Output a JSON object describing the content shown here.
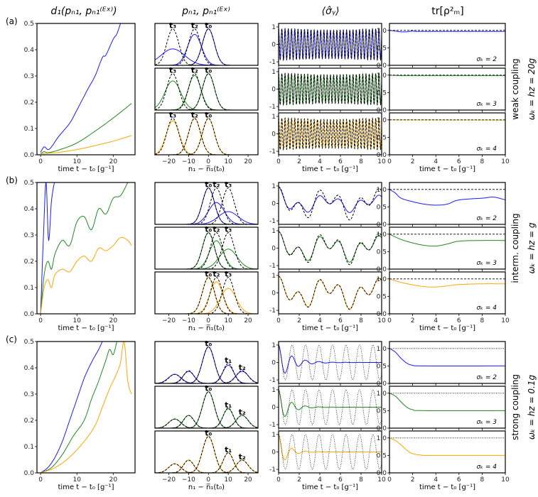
{
  "colors": {
    "blue": "#1a1aff",
    "green": "#1f8a1f",
    "orange": "#ffa500",
    "exact": "#000000"
  },
  "column_titles": [
    "d₁(pₙ₁, pₙ₁⁽ᴱˣ⁾)",
    "pₙ₁, pₙ₁⁽ᴱˣ⁾",
    "⟨σ̂ᵧ⟩",
    "tr[ρ²ₘ]"
  ],
  "x_labels": [
    "time t − t₀ [g⁻¹]",
    "n₁ − n̅₁(t₀)",
    "time t − t₀ [g⁻¹]",
    "time  t − t₀ [g⁻¹]"
  ],
  "panel_labels": [
    "(a)",
    "(b)",
    "(c)"
  ],
  "row_labels": [
    {
      "coupling": "weak coupling",
      "params": "ωₖ = hz = 20g"
    },
    {
      "coupling": "interm. coupling",
      "params": "ωₖ = hz = g"
    },
    {
      "coupling": "strong coupling",
      "params": "ωₖ = hz = 0.1g"
    }
  ],
  "sigma_labels": [
    "σₖ = 2",
    "σₖ = 3",
    "σₖ = 4"
  ],
  "chart_data": [
    {
      "type": "line",
      "name": "d1 distance",
      "xlim": [
        -1,
        26
      ],
      "ylim": [
        0,
        0.5
      ],
      "xticks": [
        0,
        10,
        20
      ],
      "yticks": [
        0.0,
        0.1,
        0.2,
        0.3,
        0.4,
        0.5
      ],
      "rows": [
        {
          "blue": [
            [
              0,
              0.01
            ],
            [
              1,
              0.03
            ],
            [
              2,
              0.02
            ],
            [
              3,
              0.03
            ],
            [
              5,
              0.07
            ],
            [
              8,
              0.12
            ],
            [
              10,
              0.17
            ],
            [
              13,
              0.25
            ],
            [
              15,
              0.3
            ],
            [
              17,
              0.37
            ],
            [
              18,
              0.38
            ],
            [
              20,
              0.44
            ],
            [
              21,
              0.46
            ],
            [
              22,
              0.5
            ]
          ],
          "green": [
            [
              0,
              0.005
            ],
            [
              1,
              0.012
            ],
            [
              2,
              0.008
            ],
            [
              5,
              0.018
            ],
            [
              10,
              0.045
            ],
            [
              15,
              0.09
            ],
            [
              20,
              0.14
            ],
            [
              25,
              0.195
            ]
          ],
          "orange": [
            [
              0,
              0.004
            ],
            [
              2,
              0.006
            ],
            [
              5,
              0.009
            ],
            [
              10,
              0.02
            ],
            [
              15,
              0.035
            ],
            [
              20,
              0.052
            ],
            [
              25,
              0.073
            ]
          ]
        },
        {
          "blue": [
            [
              0,
              0
            ],
            [
              0.8,
              0.3
            ],
            [
              1.5,
              0.5
            ],
            [
              2.2,
              0.28
            ],
            [
              3,
              0.43
            ],
            [
              3.8,
              0.5
            ]
          ],
          "green": [
            [
              0,
              0
            ],
            [
              1,
              0.15
            ],
            [
              2,
              0.2
            ],
            [
              3,
              0.17
            ],
            [
              4,
              0.23
            ],
            [
              6,
              0.28
            ],
            [
              8,
              0.26
            ],
            [
              10,
              0.35
            ],
            [
              12,
              0.37
            ],
            [
              14,
              0.32
            ],
            [
              16,
              0.4
            ],
            [
              18,
              0.38
            ],
            [
              20,
              0.44
            ],
            [
              22,
              0.45
            ],
            [
              24,
              0.5
            ]
          ],
          "orange": [
            [
              0,
              0
            ],
            [
              1,
              0.1
            ],
            [
              2,
              0.13
            ],
            [
              3,
              0.1
            ],
            [
              4,
              0.15
            ],
            [
              6,
              0.17
            ],
            [
              8,
              0.16
            ],
            [
              10,
              0.2
            ],
            [
              12,
              0.22
            ],
            [
              14,
              0.2
            ],
            [
              16,
              0.25
            ],
            [
              18,
              0.24
            ],
            [
              20,
              0.26
            ],
            [
              22,
              0.29
            ],
            [
              24,
              0.28
            ],
            [
              25,
              0.26
            ]
          ]
        },
        {
          "blue": [
            [
              0,
              0
            ],
            [
              2,
              0.02
            ],
            [
              4,
              0.06
            ],
            [
              6,
              0.12
            ],
            [
              8,
              0.2
            ],
            [
              10,
              0.28
            ],
            [
              12,
              0.36
            ],
            [
              14,
              0.42
            ],
            [
              16,
              0.47
            ],
            [
              17,
              0.5
            ]
          ],
          "green": [
            [
              0,
              0
            ],
            [
              3,
              0.02
            ],
            [
              6,
              0.07
            ],
            [
              9,
              0.14
            ],
            [
              12,
              0.2
            ],
            [
              14,
              0.28
            ],
            [
              16,
              0.35
            ],
            [
              18,
              0.43
            ],
            [
              19,
              0.47
            ],
            [
              20,
              0.45
            ],
            [
              21,
              0.5
            ]
          ],
          "orange": [
            [
              0,
              0
            ],
            [
              4,
              0.02
            ],
            [
              8,
              0.06
            ],
            [
              12,
              0.12
            ],
            [
              15,
              0.18
            ],
            [
              17,
              0.25
            ],
            [
              19,
              0.32
            ],
            [
              21,
              0.38
            ],
            [
              22,
              0.42
            ],
            [
              23,
              0.5
            ],
            [
              24,
              0.35
            ],
            [
              25,
              0.3
            ]
          ]
        }
      ]
    },
    {
      "type": "line",
      "name": "photon number distributions",
      "xlim": [
        -27,
        25
      ],
      "ylim": [
        0,
        1.15
      ],
      "xticks": [
        -20,
        -10,
        0,
        10,
        20
      ],
      "rows": [
        {
          "peaks": [
            {
              "label": "t₃",
              "n": -18
            },
            {
              "label": "t₂",
              "n": -7
            },
            {
              "label": "t₀",
              "n": 0
            }
          ],
          "exact": [
            [
              -18,
              3,
              1
            ],
            [
              -7,
              3,
              1
            ],
            [
              0,
              3,
              1
            ]
          ],
          "blue": [
            [
              -18,
              6,
              0.45
            ],
            [
              -7,
              3.5,
              0.85
            ],
            [
              0,
              3,
              1
            ]
          ],
          "green": [
            [
              -18,
              4,
              0.8
            ],
            [
              -7,
              3.2,
              0.95
            ],
            [
              0,
              3,
              1
            ]
          ],
          "orange": [
            [
              -18,
              3.3,
              0.93
            ],
            [
              -7,
              3,
              1
            ],
            [
              0,
              3,
              1
            ]
          ]
        },
        {
          "peaks": [
            {
              "label": "t₀",
              "n": 0
            },
            {
              "label": "t₂",
              "n": 4
            },
            {
              "label": "t₃",
              "n": 10
            }
          ],
          "exact": [
            [
              0,
              3,
              1
            ],
            [
              4,
              3,
              1
            ],
            [
              10,
              3,
              1
            ]
          ],
          "blue": [
            [
              0,
              3,
              1
            ],
            [
              4,
              4,
              0.6
            ],
            [
              10,
              5,
              0.35
            ]
          ],
          "green": [
            [
              0,
              3,
              1
            ],
            [
              4,
              3.5,
              0.78
            ],
            [
              10,
              4.5,
              0.55
            ]
          ],
          "orange": [
            [
              0,
              3,
              1
            ],
            [
              4,
              3.3,
              0.88
            ],
            [
              10,
              4,
              0.7
            ]
          ]
        },
        {
          "peaks": [
            {
              "label": "t₀",
              "n": 0
            },
            {
              "label": "t₁",
              "n": 10
            },
            {
              "label": "t₂",
              "n": 17
            }
          ],
          "exact": [
            [
              0,
              3,
              1
            ],
            [
              10,
              2.6,
              0.55
            ],
            [
              17,
              3,
              0.35
            ],
            [
              -10,
              2.6,
              0.35
            ],
            [
              -17,
              3,
              0.25
            ]
          ],
          "blue": [
            [
              0,
              3,
              1
            ],
            [
              10,
              2.8,
              0.5
            ],
            [
              17,
              3.2,
              0.33
            ],
            [
              -10,
              2.8,
              0.33
            ],
            [
              -17,
              3.2,
              0.25
            ]
          ],
          "green": [
            [
              0,
              3,
              1
            ],
            [
              10,
              2.7,
              0.53
            ],
            [
              17,
              3.1,
              0.35
            ],
            [
              -10,
              2.7,
              0.35
            ],
            [
              -17,
              3.1,
              0.25
            ]
          ],
          "orange": [
            [
              0,
              3,
              1
            ],
            [
              10,
              2.6,
              0.55
            ],
            [
              17,
              3,
              0.35
            ],
            [
              -10,
              2.6,
              0.35
            ],
            [
              -17,
              3,
              0.25
            ]
          ]
        }
      ]
    },
    {
      "type": "line",
      "name": "sigma_y expectation",
      "xlim": [
        0,
        10
      ],
      "ylim": [
        -1.2,
        1.2
      ],
      "xticks": [
        0,
        2,
        4,
        6,
        8,
        10
      ],
      "yticks": [
        -1,
        0,
        1
      ],
      "rows": [
        {
          "model": "fast",
          "frequency": 20,
          "amplitude": 0.9
        },
        {
          "model": "intermediate",
          "frequency": 1,
          "amplitude": 0.95
        },
        {
          "model": "strong",
          "frequency": 4.8,
          "amplitude": 1,
          "decay": [
            1.3,
            1.0,
            0.8
          ]
        }
      ]
    },
    {
      "type": "line",
      "name": "purity",
      "xlim": [
        0,
        10
      ],
      "ylim": [
        0,
        1.2
      ],
      "xticks": [
        0,
        2,
        4,
        6,
        8,
        10
      ],
      "yticks": [
        0.0,
        0.5,
        1.0
      ],
      "rows": [
        {
          "blue": [
            [
              0,
              1
            ],
            [
              0.5,
              0.98
            ],
            [
              1,
              0.96
            ],
            [
              1.5,
              0.96
            ],
            [
              2,
              0.98
            ],
            [
              3,
              0.97
            ],
            [
              10,
              0.97
            ]
          ],
          "green": [
            [
              0,
              1
            ],
            [
              1,
              0.985
            ],
            [
              3,
              0.985
            ],
            [
              10,
              0.985
            ]
          ],
          "orange": [
            [
              0,
              1
            ],
            [
              10,
              0.995
            ]
          ],
          "reference": 1.0,
          "reference_style": "dashed"
        },
        {
          "blue": [
            [
              0,
              1
            ],
            [
              0.5,
              0.9
            ],
            [
              1,
              0.75
            ],
            [
              2,
              0.65
            ],
            [
              3,
              0.58
            ],
            [
              4,
              0.55
            ],
            [
              5,
              0.58
            ],
            [
              6,
              0.7
            ],
            [
              8,
              0.75
            ],
            [
              9,
              0.78
            ],
            [
              10,
              0.7
            ]
          ],
          "green": [
            [
              0,
              1
            ],
            [
              1,
              0.85
            ],
            [
              2,
              0.75
            ],
            [
              3,
              0.68
            ],
            [
              4,
              0.66
            ],
            [
              5,
              0.72
            ],
            [
              6,
              0.8
            ],
            [
              8,
              0.82
            ],
            [
              10,
              0.82
            ]
          ],
          "orange": [
            [
              0,
              1
            ],
            [
              1,
              0.9
            ],
            [
              2,
              0.83
            ],
            [
              3,
              0.78
            ],
            [
              4,
              0.77
            ],
            [
              5,
              0.8
            ],
            [
              6,
              0.84
            ],
            [
              8,
              0.86
            ],
            [
              10,
              0.86
            ]
          ],
          "reference": 1.0,
          "reference_style": "dashed"
        },
        {
          "blue": [
            [
              0,
              1
            ],
            [
              0.5,
              0.9
            ],
            [
              1,
              0.72
            ],
            [
              1.5,
              0.58
            ],
            [
              2,
              0.52
            ],
            [
              3,
              0.5
            ],
            [
              10,
              0.5
            ]
          ],
          "green": [
            [
              0,
              1
            ],
            [
              0.5,
              0.92
            ],
            [
              1,
              0.75
            ],
            [
              1.5,
              0.6
            ],
            [
              2,
              0.53
            ],
            [
              3,
              0.5
            ],
            [
              10,
              0.5
            ]
          ],
          "orange": [
            [
              0,
              1
            ],
            [
              0.5,
              0.93
            ],
            [
              1,
              0.8
            ],
            [
              1.5,
              0.65
            ],
            [
              2,
              0.55
            ],
            [
              3,
              0.5
            ],
            [
              4,
              0.5
            ],
            [
              10,
              0.5
            ]
          ],
          "reference": 1.0,
          "reference_style": "dotted"
        }
      ]
    }
  ]
}
